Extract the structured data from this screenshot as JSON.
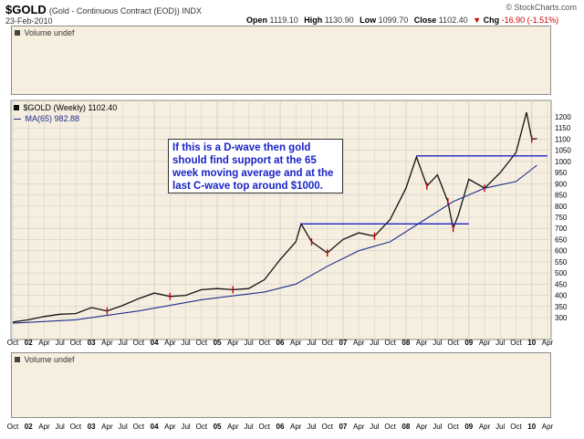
{
  "header": {
    "symbol": "$GOLD",
    "description": "(Gold - Continuous Contract (EOD)) INDX",
    "watermark": "© StockCharts.com",
    "date": "23-Feb-2010",
    "open_label": "Open",
    "open_value": "1119.10",
    "high_label": "High",
    "high_value": "1130.90",
    "low_label": "Low",
    "low_value": "1099.70",
    "close_label": "Close",
    "close_value": "1102.40",
    "chg_label": "Chg",
    "chg_value": "-16.90 (-1.51%)",
    "chg_icon": "down-triangle-icon"
  },
  "volume_top": {
    "label": "Volume undef"
  },
  "volume_bottom": {
    "label": "Volume undef"
  },
  "legend": {
    "series_label": "$GOLD (Weekly) 1102.40",
    "ma_label": "MA(65) 982.88"
  },
  "annotation": {
    "text": "If this is a D-wave then gold should find support at the 65 week moving average and at the last C-wave top around $1000."
  },
  "colors": {
    "panel_bg": "#f6efdf",
    "grid": "#cfcfcf",
    "price": "#111111",
    "down_bar": "#cc0000",
    "ma": "#1f2e8c",
    "trend_lines": "#1a23c6",
    "annotation_text": "#1a23c6",
    "chg_negative": "#cc0000"
  },
  "chart_data": {
    "type": "line",
    "title": "$GOLD (Gold - Continuous Contract (EOD)) INDX",
    "ylim": [
      250,
      1250
    ],
    "y_ticks": [
      300,
      350,
      400,
      450,
      500,
      550,
      600,
      650,
      700,
      750,
      800,
      850,
      900,
      950,
      1000,
      1050,
      1100,
      1150,
      1200
    ],
    "x_ticks": [
      "Oct",
      "02",
      "Apr",
      "Jul",
      "Oct",
      "03",
      "Apr",
      "Jul",
      "Oct",
      "04",
      "Apr",
      "Jul",
      "Oct",
      "05",
      "Apr",
      "Jul",
      "Oct",
      "06",
      "Apr",
      "Jul",
      "Oct",
      "07",
      "Apr",
      "Jul",
      "Oct",
      "08",
      "Apr",
      "Jul",
      "Oct",
      "09",
      "Apr",
      "Jul",
      "Oct",
      "10",
      "Apr"
    ],
    "x_tick_bold": [
      false,
      true,
      false,
      false,
      false,
      true,
      false,
      false,
      false,
      true,
      false,
      false,
      false,
      true,
      false,
      false,
      false,
      true,
      false,
      false,
      false,
      true,
      false,
      false,
      false,
      true,
      false,
      false,
      false,
      true,
      false,
      false,
      false,
      true,
      false
    ],
    "x_range": [
      "2001-10",
      "2010-04"
    ],
    "grid": true,
    "series": [
      {
        "name": "$GOLD (Weekly)",
        "x": [
          "2001-10",
          "2002-01",
          "2002-04",
          "2002-07",
          "2002-10",
          "2003-01",
          "2003-04",
          "2003-07",
          "2003-10",
          "2004-01",
          "2004-04",
          "2004-07",
          "2004-10",
          "2005-01",
          "2005-04",
          "2005-07",
          "2005-10",
          "2006-01",
          "2006-04",
          "2006-05",
          "2006-07",
          "2006-10",
          "2007-01",
          "2007-04",
          "2007-07",
          "2007-10",
          "2008-01",
          "2008-03",
          "2008-05",
          "2008-07",
          "2008-09",
          "2008-10",
          "2008-11",
          "2009-01",
          "2009-04",
          "2009-07",
          "2009-10",
          "2009-12",
          "2010-01",
          "2010-02"
        ],
        "values": [
          280,
          290,
          305,
          315,
          318,
          345,
          330,
          355,
          385,
          410,
          395,
          400,
          425,
          430,
          425,
          430,
          470,
          560,
          640,
          720,
          640,
          590,
          650,
          680,
          665,
          740,
          880,
          1020,
          890,
          940,
          820,
          700,
          760,
          920,
          880,
          950,
          1040,
          1220,
          1100,
          1102
        ]
      },
      {
        "name": "MA(65)",
        "x": [
          "2001-10",
          "2002-10",
          "2003-10",
          "2004-10",
          "2005-10",
          "2006-04",
          "2006-10",
          "2007-04",
          "2007-10",
          "2008-04",
          "2008-10",
          "2009-04",
          "2009-10",
          "2010-02"
        ],
        "values": [
          275,
          290,
          330,
          380,
          415,
          450,
          530,
          600,
          640,
          730,
          820,
          880,
          910,
          983
        ]
      }
    ],
    "hlines": [
      {
        "value": 720,
        "from": "2006-05",
        "to": "2009-01"
      },
      {
        "value": 1025,
        "from": "2008-03",
        "to": "2010-04"
      }
    ]
  }
}
